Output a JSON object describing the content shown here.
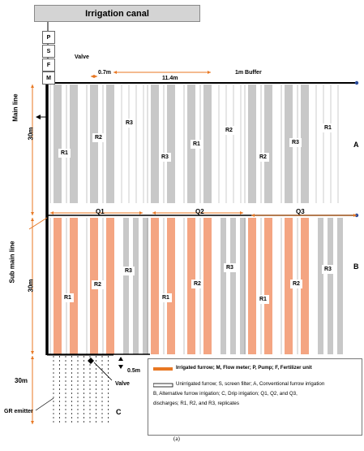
{
  "title": "Irrigation canal",
  "units": [
    "P",
    "S",
    "F",
    "M"
  ],
  "labels": {
    "valve_top": "Valve",
    "spacing_small": "0.7m",
    "spacing_large": "11.4m",
    "buffer": "1m Buffer",
    "main_line": "Main line",
    "sub_main_line": "Sub main line",
    "section_a": "A",
    "section_b": "B",
    "section_c": "C",
    "height_a": "30m",
    "height_b": "30m",
    "height_c": "30m",
    "valve_bottom": "Valve",
    "emitter_spacing": "0.5m",
    "gr_emitter": "GR emitter"
  },
  "discharges": [
    "Q1",
    "Q2",
    "Q3"
  ],
  "replicates_a": [
    "R1",
    "R2",
    "R3",
    "R3",
    "R1",
    "R2",
    "R2",
    "R3",
    "R1"
  ],
  "replicates_b": [
    "R1",
    "R2",
    "R3",
    "R1",
    "R2",
    "R3",
    "R1",
    "R2",
    "R3"
  ],
  "legend": {
    "irrigated": "Irrigated furrow; M, Flow meter; P, Pump; F, Fertilizer unit",
    "unirrigated": "Unirrigated furrow; S, screen filter; A, Conventional furrow irrigation",
    "line2": "B, Alternative furrow irrigation; C, Drip irrigation; Q1, Q2, and Q3,",
    "line3": "discharges; R1, R2, and R3, replicates"
  },
  "caption": "(a)",
  "colors": {
    "irrigated": "#f4a582",
    "unirrigated": "#ffffff",
    "gray": "#c8c8c8",
    "accent": "#e87722",
    "dot": "#2b4c9b"
  }
}
